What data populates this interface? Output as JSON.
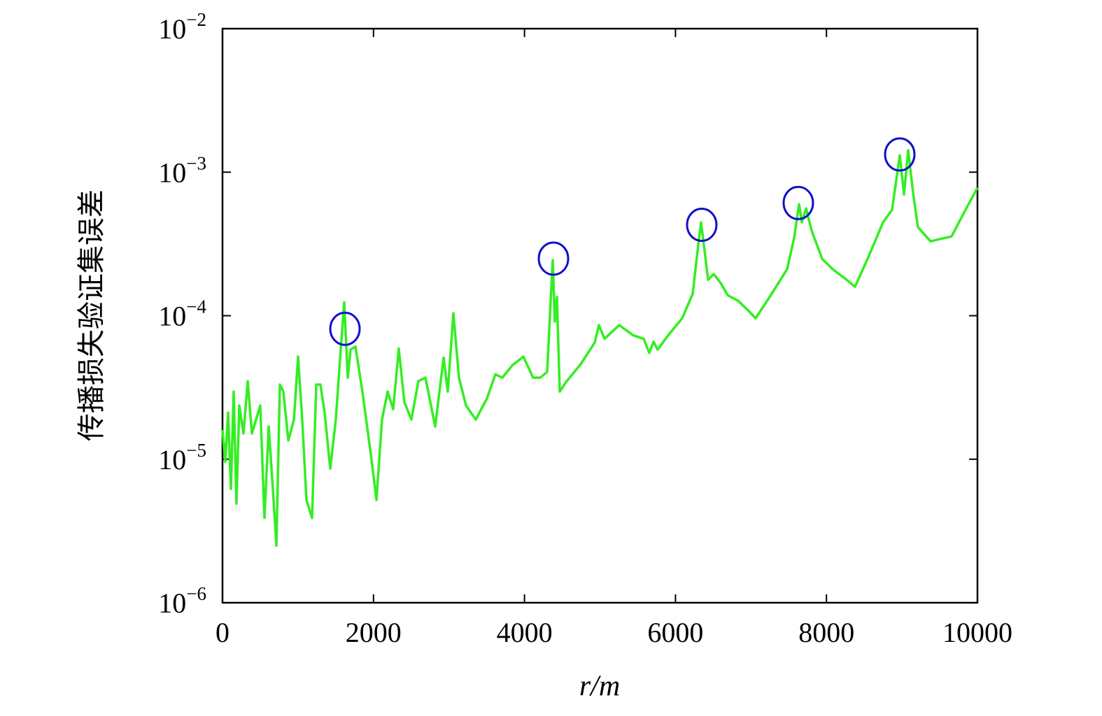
{
  "chart_data": {
    "type": "line",
    "ylabel": "传播损失验证集误差",
    "xlabel": "r/m",
    "log_y": true,
    "xlim": [
      0,
      10000
    ],
    "xticks": [
      0,
      2000,
      4000,
      6000,
      8000,
      10000
    ],
    "ylim": [
      1e-06,
      0.01
    ],
    "yticks": [
      {
        "value": 1e-06,
        "label": "10−6"
      },
      {
        "value": 1e-05,
        "label": "10−5"
      },
      {
        "value": 0.0001,
        "label": "10−4"
      },
      {
        "value": 0.001,
        "label": "10−3"
      },
      {
        "value": 0.01,
        "label": "10−2"
      }
    ],
    "series": [
      {
        "color": "#33ee22",
        "x": [
          0,
          37,
          74,
          111,
          148,
          185,
          222,
          278,
          334,
          390,
          445,
          500,
          556,
          612,
          667,
          714,
          760,
          806,
          872,
          946,
          1001,
          1056,
          1112,
          1186,
          1242,
          1297,
          1353,
          1427,
          1501,
          1566,
          1612,
          1659,
          1696,
          1761,
          1853,
          1965,
          2039,
          2113,
          2187,
          2261,
          2335,
          2409,
          2502,
          2595,
          2688,
          2817,
          2929,
          2984,
          3058,
          3132,
          3225,
          3355,
          3503,
          3614,
          3707,
          3837,
          3985,
          4114,
          4207,
          4300,
          4374,
          4402,
          4430,
          4467,
          4560,
          4745,
          4930,
          4986,
          5060,
          5254,
          5440,
          5579,
          5653,
          5709,
          5764,
          5903,
          6089,
          6228,
          6302,
          6339,
          6376,
          6432,
          6506,
          6599,
          6691,
          6830,
          6969,
          7062,
          7247,
          7479,
          7572,
          7637,
          7674,
          7730,
          7804,
          7943,
          8082,
          8267,
          8378,
          8545,
          8749,
          8869,
          8971,
          9027,
          9082,
          9147,
          9212,
          9379,
          9657,
          9842,
          10000
        ],
        "values": [
          1.6e-05,
          9.6e-06,
          2.11e-05,
          6.2e-06,
          2.96e-05,
          4.9e-06,
          2.37e-05,
          1.51e-05,
          3.5e-05,
          1.51e-05,
          1.89e-05,
          2.37e-05,
          3.9e-06,
          1.69e-05,
          6.2e-06,
          2.5e-06,
          3.31e-05,
          2.96e-05,
          1.35e-05,
          1.89e-05,
          5.19e-05,
          1.89e-05,
          5.2e-06,
          3.9e-06,
          3.31e-05,
          3.31e-05,
          2.11e-05,
          8.6e-06,
          1.89e-05,
          5.8e-05,
          0.000124,
          3.7e-05,
          5.8e-05,
          6.1e-05,
          2.96e-05,
          1.08e-05,
          5.2e-06,
          1.89e-05,
          2.96e-05,
          2.23e-05,
          5.9e-05,
          2.5e-05,
          1.89e-05,
          3.5e-05,
          3.7e-05,
          1.69e-05,
          5.1e-05,
          2.96e-05,
          0.000104,
          3.7e-05,
          2.37e-05,
          1.89e-05,
          2.65e-05,
          3.9e-05,
          3.7e-05,
          4.5e-05,
          5.19e-05,
          3.7e-05,
          3.7e-05,
          4.05e-05,
          0.000244,
          9.1e-05,
          0.000135,
          2.96e-05,
          3.5e-05,
          4.6e-05,
          6.5e-05,
          8.6e-05,
          6.9e-05,
          8.6e-05,
          7.3e-05,
          6.9e-05,
          5.5e-05,
          6.6e-05,
          5.8e-05,
          7.3e-05,
          9.6e-05,
          0.000142,
          0.000312,
          0.000447,
          0.000312,
          0.000178,
          0.000195,
          0.000169,
          0.000139,
          0.000127,
          0.000108,
          9.6e-05,
          0.000135,
          0.000211,
          0.000349,
          0.000598,
          0.000447,
          0.00056,
          0.000391,
          0.000249,
          0.000211,
          0.000178,
          0.000159,
          0.000249,
          0.000447,
          0.000547,
          0.00131,
          0.0007,
          0.00142,
          0.00072,
          0.000413,
          0.00033,
          0.000357,
          0.000547,
          0.00078
        ]
      }
    ],
    "circled_points": {
      "color": "#1111cc",
      "x": [
        1622,
        4384,
        6348,
        7627,
        8971
      ],
      "values": [
        8.1e-05,
        0.00025,
        0.00043,
        0.00061,
        0.00133
      ]
    }
  }
}
